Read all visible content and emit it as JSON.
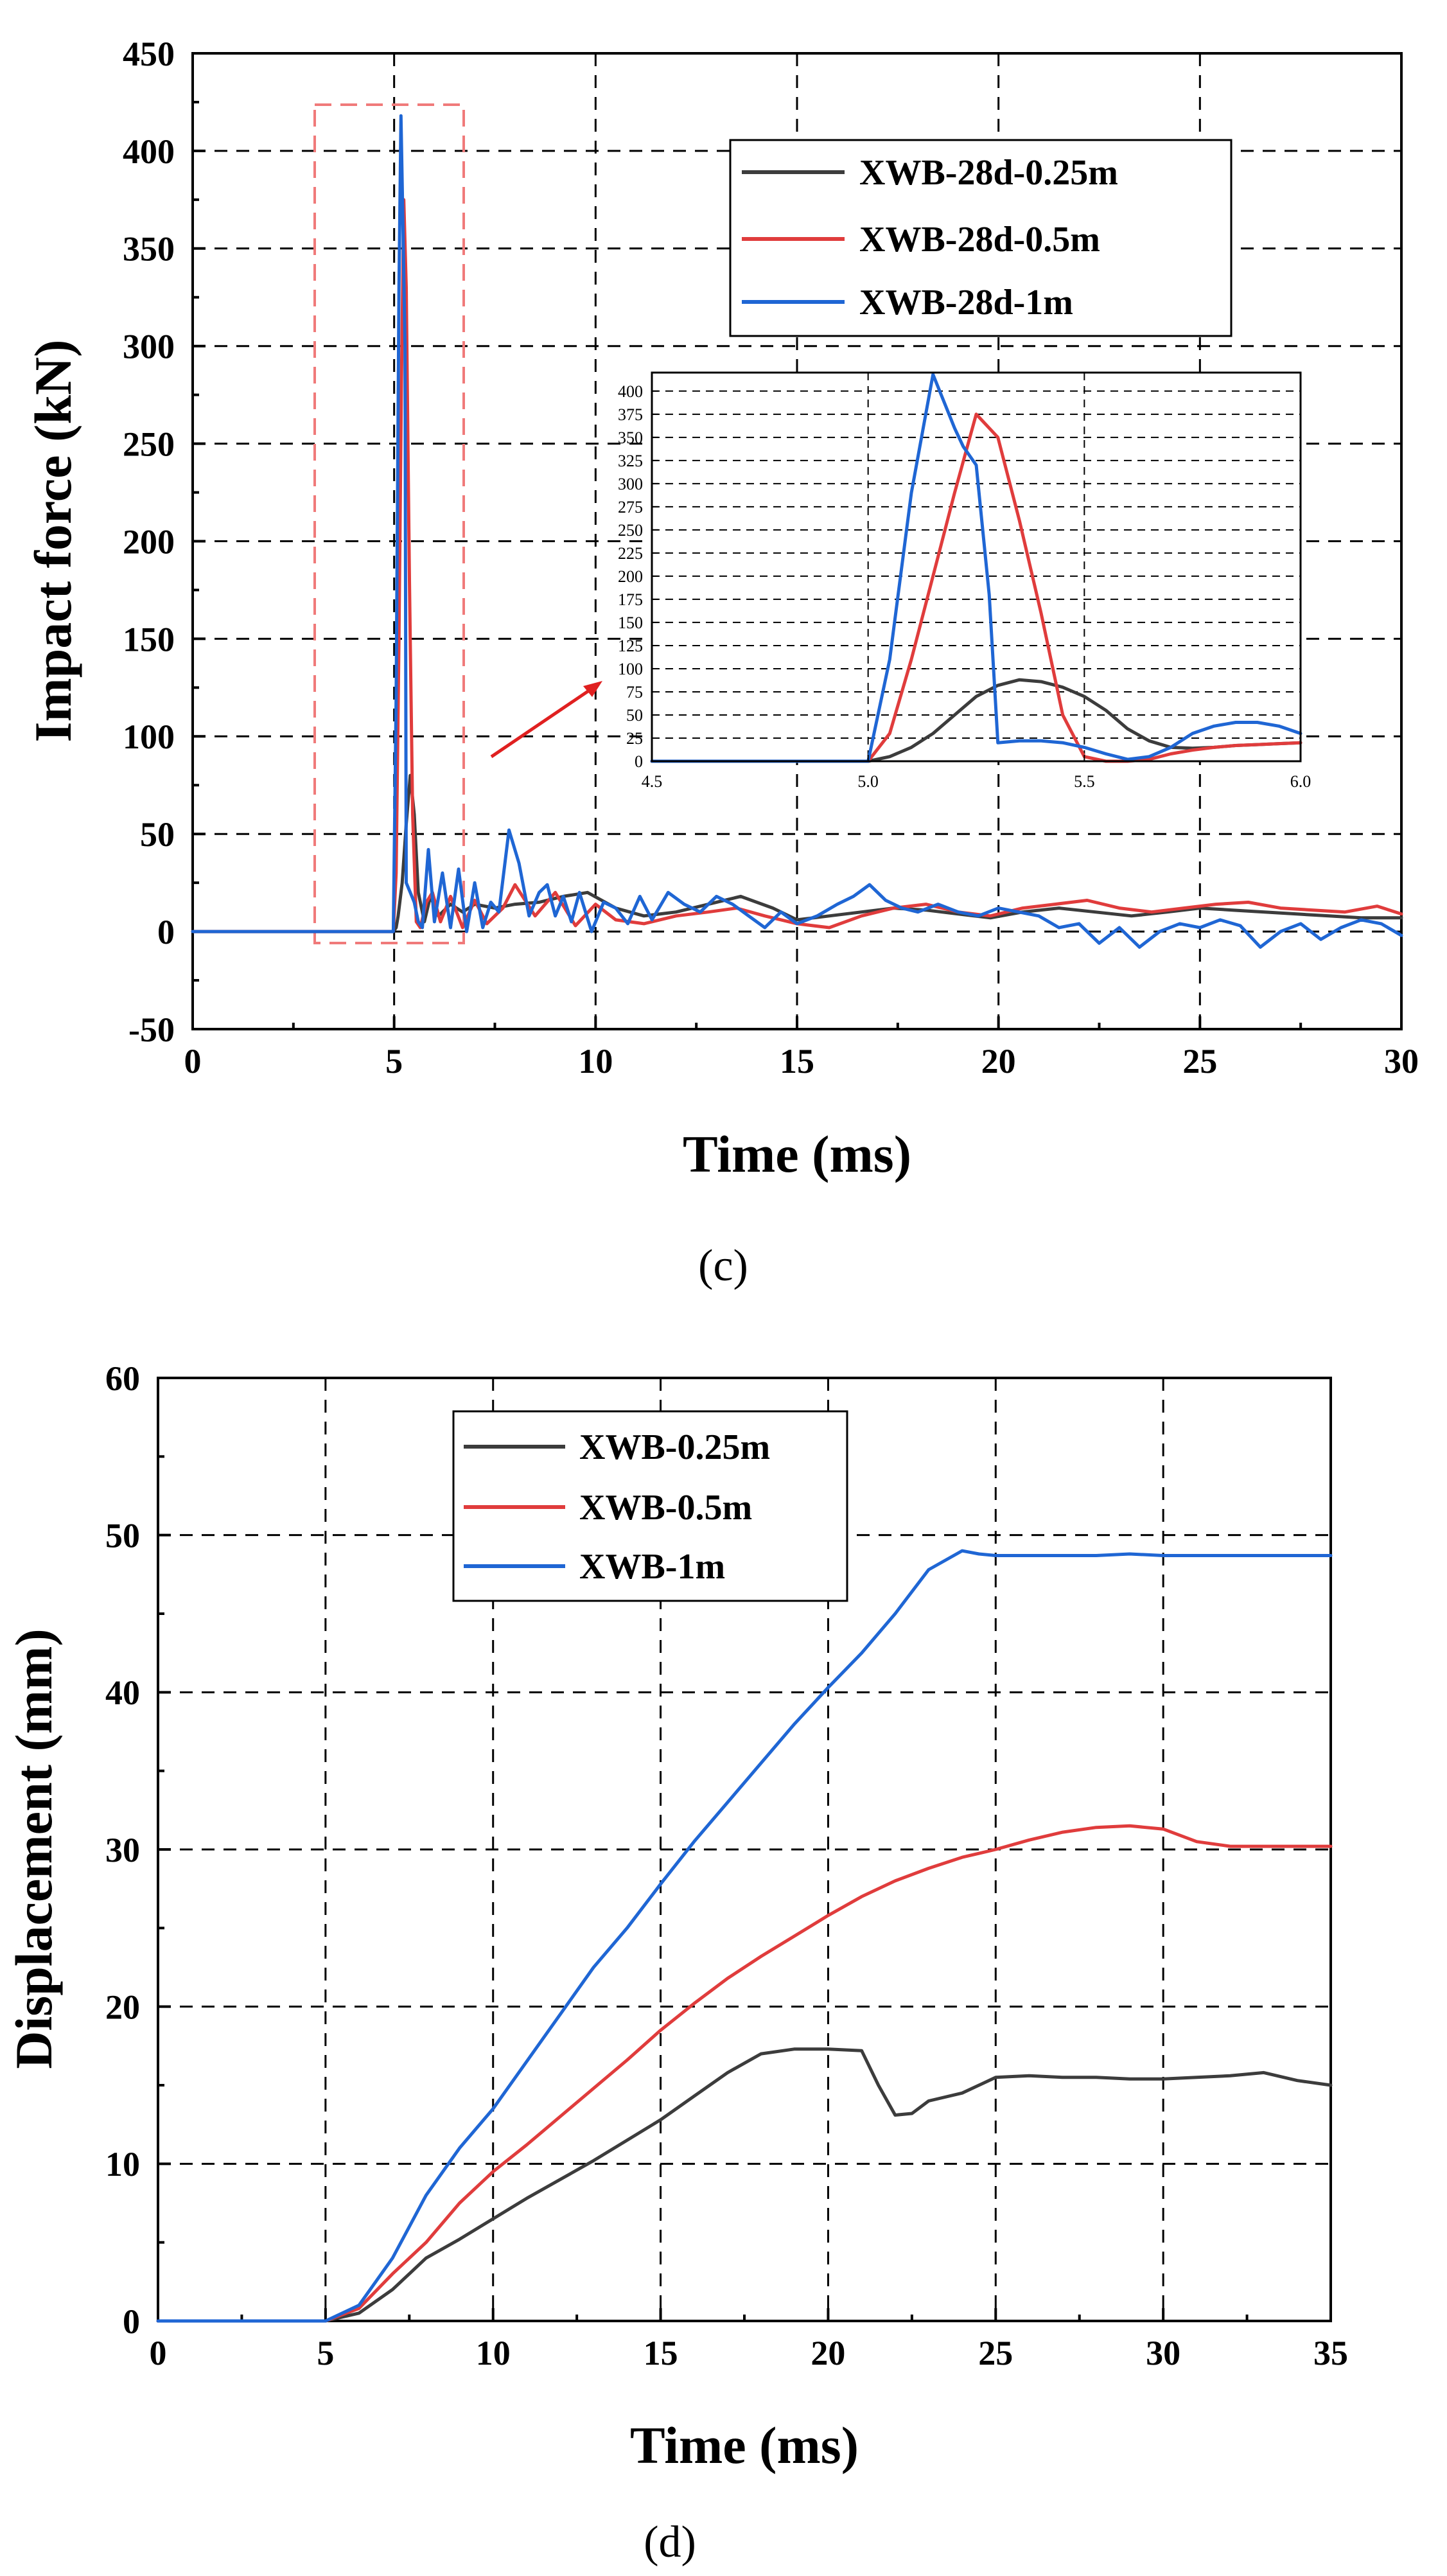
{
  "chart_data": [
    {
      "type": "line",
      "panel": "(c)",
      "caption": "(c)",
      "xlabel": "Time (ms)",
      "ylabel": "Impact force (kN)",
      "xlim": [
        0,
        30
      ],
      "ylim": [
        -50,
        450
      ],
      "xticks": [
        0,
        5,
        10,
        15,
        20,
        25,
        30
      ],
      "yticks": [
        -50,
        0,
        50,
        100,
        150,
        200,
        250,
        300,
        350,
        400,
        450
      ],
      "grid": true,
      "legend_position": "top-right",
      "series": [
        {
          "name": "XWB-28d-0.25m",
          "color": "#3c3c3c",
          "x": [
            0,
            4.98,
            5.05,
            5.1,
            5.2,
            5.3,
            5.4,
            5.5,
            5.6,
            5.75,
            5.9,
            6.1,
            6.4,
            6.7,
            7.0,
            7.5,
            8.0,
            8.6,
            9.2,
            9.8,
            10.5,
            11.2,
            12.0,
            12.8,
            13.6,
            14.4,
            15.0,
            15.8,
            16.6,
            17.4,
            18.2,
            19.0,
            19.8,
            20.6,
            21.5,
            22.4,
            23.3,
            24.2,
            25.0,
            25.8,
            26.6,
            27.4,
            28.2,
            29.0,
            30.0
          ],
          "y": [
            0,
            0,
            2,
            8,
            25,
            55,
            80,
            60,
            20,
            5,
            18,
            8,
            14,
            10,
            14,
            12,
            14,
            15,
            18,
            20,
            12,
            8,
            10,
            14,
            18,
            12,
            6,
            8,
            10,
            12,
            11,
            9,
            7,
            10,
            12,
            10,
            8,
            10,
            12,
            11,
            10,
            9,
            8,
            7,
            7
          ]
        },
        {
          "name": "XWB-28d-0.5m",
          "color": "#e03c3c",
          "x": [
            0,
            4.98,
            5.05,
            5.12,
            5.18,
            5.24,
            5.3,
            5.38,
            5.46,
            5.55,
            5.65,
            5.8,
            5.95,
            6.15,
            6.4,
            6.7,
            7.0,
            7.3,
            7.7,
            8.0,
            8.5,
            9.0,
            9.5,
            10.0,
            10.5,
            11.2,
            12.0,
            12.8,
            13.5,
            14.2,
            15.0,
            15.8,
            16.6,
            17.4,
            18.2,
            19.0,
            19.8,
            20.6,
            21.4,
            22.2,
            23.0,
            23.8,
            24.6,
            25.4,
            26.2,
            27.0,
            27.8,
            28.6,
            29.4,
            30.0
          ],
          "y": [
            0,
            0,
            30,
            150,
            280,
            375,
            330,
            180,
            60,
            5,
            2,
            15,
            20,
            5,
            18,
            2,
            16,
            4,
            12,
            24,
            8,
            20,
            3,
            14,
            6,
            4,
            8,
            10,
            12,
            8,
            4,
            2,
            8,
            12,
            14,
            10,
            8,
            12,
            14,
            16,
            12,
            10,
            12,
            14,
            15,
            12,
            11,
            10,
            13,
            9
          ]
        },
        {
          "name": "XWB-28d-1m",
          "color": "#1f66d4",
          "x": [
            0,
            4.98,
            5.05,
            5.12,
            5.17,
            5.22,
            5.27,
            5.3,
            5.4,
            5.5,
            5.6,
            5.7,
            5.85,
            6.0,
            6.2,
            6.4,
            6.6,
            6.8,
            7.0,
            7.2,
            7.4,
            7.6,
            7.85,
            8.1,
            8.35,
            8.6,
            8.8,
            9.0,
            9.2,
            9.4,
            9.6,
            9.9,
            10.2,
            10.5,
            10.8,
            11.1,
            11.4,
            11.8,
            12.2,
            12.6,
            13.0,
            13.4,
            13.8,
            14.2,
            14.6,
            15.0,
            15.5,
            16.0,
            16.4,
            16.8,
            17.2,
            17.6,
            18.0,
            18.5,
            19.0,
            19.5,
            20.0,
            20.5,
            21.0,
            21.5,
            22.0,
            22.5,
            23.0,
            23.5,
            24.0,
            24.5,
            25.0,
            25.5,
            26.0,
            26.5,
            27.0,
            27.5,
            28.0,
            28.5,
            29.0,
            29.5,
            30.0
          ],
          "y": [
            0,
            0,
            120,
            330,
            418,
            360,
            300,
            25,
            20,
            15,
            5,
            2,
            42,
            5,
            30,
            2,
            32,
            0,
            25,
            2,
            15,
            10,
            52,
            35,
            8,
            20,
            24,
            8,
            18,
            5,
            20,
            0,
            15,
            12,
            4,
            18,
            6,
            20,
            14,
            10,
            18,
            14,
            8,
            2,
            10,
            4,
            8,
            14,
            18,
            24,
            16,
            12,
            10,
            14,
            10,
            8,
            12,
            10,
            8,
            2,
            4,
            -6,
            2,
            -8,
            0,
            4,
            2,
            6,
            3,
            -8,
            0,
            4,
            -4,
            2,
            6,
            4,
            -2
          ]
        }
      ],
      "inset": {
        "xlim": [
          4.5,
          6.0
        ],
        "ylim": [
          0,
          420
        ],
        "xticks": [
          4.5,
          5.0,
          5.5,
          6.0
        ],
        "xtick_labels": [
          "4.5",
          "5.0",
          "5.5",
          "6.0"
        ],
        "yticks": [
          0,
          25,
          50,
          75,
          100,
          125,
          150,
          175,
          200,
          225,
          250,
          275,
          300,
          325,
          350,
          375,
          400
        ],
        "grid": true,
        "series": [
          {
            "name": "XWB-28d-0.25m",
            "color": "#3c3c3c",
            "x": [
              4.5,
              5.0,
              5.05,
              5.1,
              5.15,
              5.2,
              5.25,
              5.3,
              5.35,
              5.4,
              5.45,
              5.5,
              5.55,
              5.6,
              5.65,
              5.7,
              5.75,
              5.8,
              5.85,
              5.9,
              5.95,
              6.0
            ],
            "y": [
              0,
              0,
              5,
              15,
              30,
              50,
              70,
              82,
              88,
              86,
              80,
              70,
              55,
              35,
              22,
              15,
              14,
              15,
              17,
              18,
              19,
              20
            ]
          },
          {
            "name": "XWB-28d-0.5m",
            "color": "#e03c3c",
            "x": [
              4.5,
              5.0,
              5.05,
              5.1,
              5.15,
              5.2,
              5.25,
              5.3,
              5.35,
              5.4,
              5.45,
              5.5,
              5.55,
              5.6,
              5.65,
              5.7,
              5.75,
              5.8,
              5.85,
              5.9,
              5.95,
              6.0
            ],
            "y": [
              0,
              0,
              30,
              110,
              200,
              290,
              375,
              350,
              260,
              160,
              50,
              5,
              0,
              0,
              2,
              8,
              12,
              15,
              17,
              18,
              19,
              20
            ]
          },
          {
            "name": "XWB-28d-1m",
            "color": "#1f66d4",
            "x": [
              4.5,
              5.0,
              5.05,
              5.1,
              5.15,
              5.2,
              5.22,
              5.25,
              5.28,
              5.3,
              5.35,
              5.4,
              5.45,
              5.5,
              5.55,
              5.6,
              5.65,
              5.7,
              5.75,
              5.8,
              5.85,
              5.9,
              5.95,
              6.0
            ],
            "y": [
              0,
              0,
              110,
              290,
              418,
              360,
              340,
              320,
              180,
              20,
              22,
              22,
              20,
              15,
              8,
              2,
              5,
              15,
              30,
              38,
              42,
              42,
              38,
              30
            ]
          }
        ]
      }
    },
    {
      "type": "line",
      "panel": "(d)",
      "caption": "(d)",
      "xlabel": "Time (ms)",
      "ylabel": "Displacement (mm)",
      "xlim": [
        0,
        35
      ],
      "ylim": [
        0,
        60
      ],
      "xticks": [
        0,
        5,
        10,
        15,
        20,
        25,
        30,
        35
      ],
      "yticks": [
        0,
        10,
        20,
        30,
        40,
        50,
        60
      ],
      "grid": true,
      "legend_position": "top-left",
      "series": [
        {
          "name": "XWB-0.25m",
          "color": "#3c3c3c",
          "x": [
            0,
            5,
            6,
            7,
            8,
            9,
            10,
            11,
            12,
            13,
            14,
            15,
            16,
            17,
            18,
            19,
            20,
            21,
            21.5,
            22,
            22.5,
            23,
            24,
            25,
            26,
            27,
            28,
            29,
            30,
            31,
            32,
            33,
            34,
            35
          ],
          "y": [
            0,
            0,
            0.5,
            2,
            4,
            5.2,
            6.5,
            7.8,
            9,
            10.2,
            11.5,
            12.8,
            14.3,
            15.8,
            17,
            17.3,
            17.3,
            17.2,
            15,
            13.1,
            13.2,
            14,
            14.5,
            15.5,
            15.6,
            15.5,
            15.5,
            15.4,
            15.4,
            15.5,
            15.6,
            15.8,
            15.3,
            15
          ]
        },
        {
          "name": "XWB-0.5m",
          "color": "#e03c3c",
          "x": [
            0,
            5,
            6,
            7,
            8,
            9,
            10,
            11,
            12,
            13,
            14,
            15,
            16,
            17,
            18,
            19,
            20,
            21,
            22,
            23,
            24,
            25,
            26,
            27,
            28,
            29,
            30,
            31,
            32,
            33,
            34,
            35
          ],
          "y": [
            0,
            0,
            0.8,
            3,
            5,
            7.5,
            9.5,
            11.2,
            13,
            14.8,
            16.6,
            18.5,
            20.2,
            21.8,
            23.2,
            24.5,
            25.8,
            27,
            28,
            28.8,
            29.5,
            30,
            30.6,
            31.1,
            31.4,
            31.5,
            31.3,
            30.5,
            30.2,
            30.2,
            30.2,
            30.2
          ]
        },
        {
          "name": "XWB-1m",
          "color": "#1f66d4",
          "x": [
            0,
            5,
            6,
            7,
            8,
            9,
            10,
            11,
            12,
            13,
            14,
            15,
            16,
            17,
            18,
            19,
            20,
            21,
            22,
            23,
            24,
            24.5,
            25,
            26,
            27,
            28,
            29,
            30,
            31,
            32,
            33,
            34,
            35
          ],
          "y": [
            0,
            0,
            1,
            4,
            8,
            11,
            13.5,
            16.5,
            19.5,
            22.5,
            25,
            27.8,
            30.5,
            33,
            35.5,
            38,
            40.3,
            42.5,
            45,
            47.8,
            49,
            48.8,
            48.7,
            48.7,
            48.7,
            48.7,
            48.8,
            48.7,
            48.7,
            48.7,
            48.7,
            48.7,
            48.7
          ]
        }
      ]
    }
  ]
}
